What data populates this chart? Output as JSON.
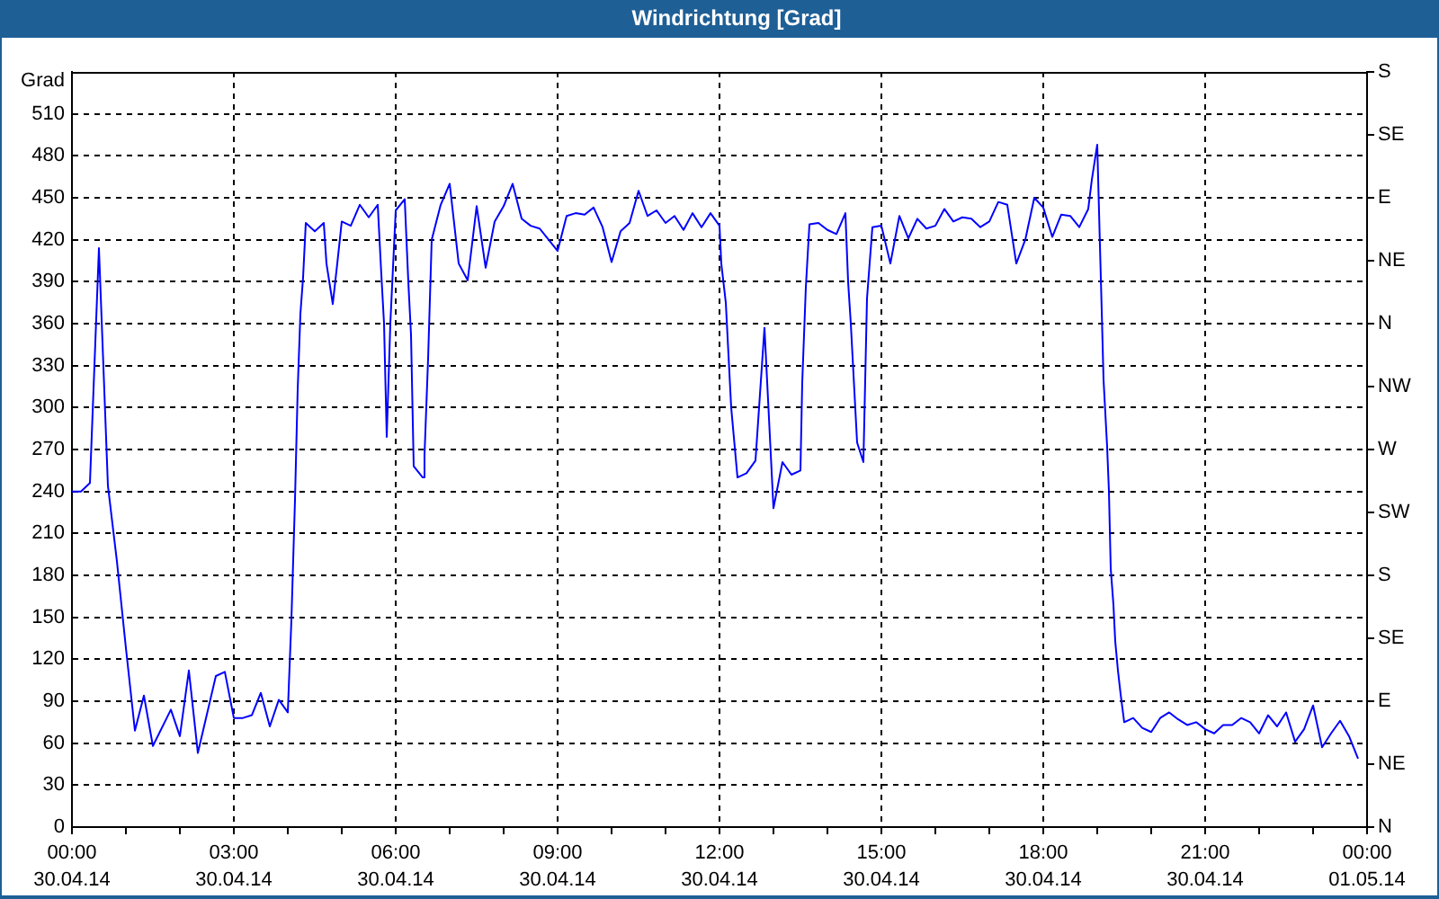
{
  "chart_data": {
    "type": "line",
    "title": "Windrichtung [Grad]",
    "ylabel": "Grad",
    "x": [
      "--04-30T00:00",
      "--04-30T00:10",
      "--04-30T00:20",
      "--04-30T00:30",
      "--04-30T00:40",
      "--04-30T00:50",
      "--04-30T01:00",
      "--04-30T01:10",
      "--04-30T01:20",
      "--04-30T01:30",
      "--04-30T01:50",
      "--04-30T02:00",
      "--04-30T02:10",
      "--04-30T02:20",
      "--04-30T02:40",
      "--04-30T02:50",
      "--04-30T03:00",
      "--04-30T03:10",
      "--04-30T03:20",
      "--04-30T03:30",
      "--04-30T03:40",
      "--04-30T03:50",
      "--04-30T04:00",
      "--04-30T04:04",
      "--04-30T04:06",
      "--04-30T04:08",
      "--04-30T04:11",
      "--04-30T04:14",
      "--04-30T04:17",
      "--04-30T04:20",
      "--04-30T04:30",
      "--04-30T04:40",
      "--04-30T04:43",
      "--04-30T04:50",
      "--04-30T04:55",
      "--04-30T05:00",
      "--04-30T05:10",
      "--04-30T05:20",
      "--04-30T05:30",
      "--04-30T05:40",
      "--04-30T05:44",
      "--04-30T05:47",
      "--04-30T05:50",
      "--04-30T05:54",
      "--04-30T06:00",
      "--04-30T06:10",
      "--04-30T06:14",
      "--04-30T06:17",
      "--04-30T06:20",
      "--04-30T06:30",
      "--04-30T06:32",
      "--04-30T06:36",
      "--04-30T06:40",
      "--04-30T06:50",
      "--04-30T07:00",
      "--04-30T07:10",
      "--04-30T07:20",
      "--04-30T07:30",
      "--04-30T07:40",
      "--04-30T07:50",
      "--04-30T08:00",
      "--04-30T08:10",
      "--04-30T08:20",
      "--04-30T08:30",
      "--04-30T08:40",
      "--04-30T08:50",
      "--04-30T09:00",
      "--04-30T09:10",
      "--04-30T09:20",
      "--04-30T09:30",
      "--04-30T09:40",
      "--04-30T09:50",
      "--04-30T10:00",
      "--04-30T10:10",
      "--04-30T10:20",
      "--04-30T10:30",
      "--04-30T10:40",
      "--04-30T10:50",
      "--04-30T11:00",
      "--04-30T11:10",
      "--04-30T11:20",
      "--04-30T11:30",
      "--04-30T11:40",
      "--04-30T11:50",
      "--04-30T12:00",
      "--04-30T12:02",
      "--04-30T12:07",
      "--04-30T12:13",
      "--04-30T12:20",
      "--04-30T12:30",
      "--04-30T12:40",
      "--04-30T12:50",
      "--04-30T13:00",
      "--04-30T13:10",
      "--04-30T13:20",
      "--04-30T13:30",
      "--04-30T13:32",
      "--04-30T13:36",
      "--04-30T13:40",
      "--04-30T13:50",
      "--04-30T14:00",
      "--04-30T14:10",
      "--04-30T14:20",
      "--04-30T14:23",
      "--04-30T14:26",
      "--04-30T14:33",
      "--04-30T14:40",
      "--04-30T14:44",
      "--04-30T14:50",
      "--04-30T15:00",
      "--04-30T15:10",
      "--04-30T15:20",
      "--04-30T15:30",
      "--04-30T15:40",
      "--04-30T15:50",
      "--04-30T16:00",
      "--04-30T16:10",
      "--04-30T16:20",
      "--04-30T16:30",
      "--04-30T16:40",
      "--04-30T16:50",
      "--04-30T17:00",
      "--04-30T17:10",
      "--04-30T17:20",
      "--04-30T17:30",
      "--04-30T17:40",
      "--04-30T17:50",
      "--04-30T18:00",
      "--04-30T18:10",
      "--04-30T18:20",
      "--04-30T18:30",
      "--04-30T18:40",
      "--04-30T18:50",
      "--04-30T18:54",
      "--04-30T19:00",
      "--04-30T19:03",
      "--04-30T19:05",
      "--04-30T19:07",
      "--04-30T19:11",
      "--04-30T19:13",
      "--04-30T19:15",
      "--04-30T19:18",
      "--04-30T19:20",
      "--04-30T19:23",
      "--04-30T19:26",
      "--04-30T19:30",
      "--04-30T19:40",
      "--04-30T19:50",
      "--04-30T20:00",
      "--04-30T20:10",
      "--04-30T20:20",
      "--04-30T20:30",
      "--04-30T20:40",
      "--04-30T20:50",
      "--04-30T21:00",
      "--04-30T21:10",
      "--04-30T21:20",
      "--04-30T21:30",
      "--04-30T21:40",
      "--04-30T21:50",
      "--04-30T22:00",
      "--04-30T22:10",
      "--04-30T22:20",
      "--04-30T22:30",
      "--04-30T22:40",
      "--04-30T22:50",
      "--04-30T23:00",
      "--04-30T23:10",
      "--04-30T23:20",
      "--04-30T23:30",
      "--04-30T23:40",
      "--04-30T23:50"
    ],
    "series": [
      {
        "color": "#0000ff",
        "values": [
          240,
          240,
          246,
          414,
          244,
          190,
          128,
          69,
          94,
          58,
          84,
          65,
          112,
          53,
          108,
          111,
          78,
          78,
          80,
          96,
          72,
          91,
          82,
          148,
          191,
          234,
          313,
          367,
          393,
          432,
          426,
          432,
          403,
          374,
          403,
          433,
          430,
          445,
          436,
          445,
          395,
          360,
          279,
          360,
          441,
          449,
          390,
          352,
          258,
          250,
          266,
          335,
          420,
          445,
          460,
          403,
          391,
          444,
          400,
          433,
          444,
          460,
          435,
          430,
          428,
          420,
          412,
          437,
          439,
          438,
          443,
          429,
          404,
          426,
          432,
          455,
          437,
          441,
          432,
          437,
          427,
          439,
          429,
          439,
          430,
          403,
          375,
          300,
          250,
          253,
          262,
          357,
          228,
          261,
          252,
          255,
          318,
          386,
          431,
          432,
          427,
          424,
          439,
          390,
          360,
          275,
          261,
          378,
          429,
          430,
          403,
          437,
          421,
          435,
          428,
          430,
          442,
          433,
          436,
          435,
          429,
          433,
          447,
          445,
          403,
          420,
          450,
          443,
          422,
          438,
          437,
          429,
          442,
          463,
          488,
          416,
          369,
          320,
          272,
          240,
          185,
          159,
          133,
          112,
          95,
          75,
          78,
          71,
          68,
          78,
          82,
          77,
          73,
          75,
          70,
          67,
          73,
          73,
          78,
          75,
          67,
          80,
          72,
          82,
          61,
          70,
          87,
          57,
          67,
          76,
          65,
          49
        ]
      }
    ],
    "xlim": [
      "--04-30T00:00",
      "--05-01T00:00"
    ],
    "xticks": [
      {
        "value": "--04-30T00:00",
        "label": "00:00\n30.04.14"
      },
      {
        "value": "--04-30T01:00",
        "label": null
      },
      {
        "value": "--04-30T02:00",
        "label": null
      },
      {
        "value": "--04-30T03:00",
        "label": "03:00\n30.04.14"
      },
      {
        "value": "--04-30T04:00",
        "label": null
      },
      {
        "value": "--04-30T05:00",
        "label": null
      },
      {
        "value": "--04-30T06:00",
        "label": "06:00\n30.04.14"
      },
      {
        "value": "--04-30T07:00",
        "label": null
      },
      {
        "value": "--04-30T08:00",
        "label": null
      },
      {
        "value": "--04-30T09:00",
        "label": "09:00\n30.04.14"
      },
      {
        "value": "--04-30T10:00",
        "label": null
      },
      {
        "value": "--04-30T11:00",
        "label": null
      },
      {
        "value": "--04-30T12:00",
        "label": "12:00\n30.04.14"
      },
      {
        "value": "--04-30T13:00",
        "label": null
      },
      {
        "value": "--04-30T14:00",
        "label": null
      },
      {
        "value": "--04-30T15:00",
        "label": "15:00\n30.04.14"
      },
      {
        "value": "--04-30T16:00",
        "label": null
      },
      {
        "value": "--04-30T17:00",
        "label": null
      },
      {
        "value": "--04-30T18:00",
        "label": "18:00\n30.04.14"
      },
      {
        "value": "--04-30T19:00",
        "label": null
      },
      {
        "value": "--04-30T20:00",
        "label": null
      },
      {
        "value": "--04-30T21:00",
        "label": "21:00\n30.04.14"
      },
      {
        "value": "--04-30T22:00",
        "label": null
      },
      {
        "value": "--04-30T23:00",
        "label": null
      },
      {
        "value": "--05-01T00:00",
        "label": "00:00\n01.05.14"
      }
    ],
    "ylim": [
      0,
      540
    ],
    "yticks": [
      0,
      30,
      60,
      90,
      120,
      150,
      180,
      210,
      240,
      270,
      300,
      330,
      360,
      390,
      420,
      450,
      480,
      510
    ],
    "y2_categories": [
      "S",
      "SE",
      "E",
      "NE",
      "N",
      "NW",
      "W",
      "SW",
      "S",
      "SE",
      "E",
      "NE",
      "N"
    ],
    "grid": true
  }
}
